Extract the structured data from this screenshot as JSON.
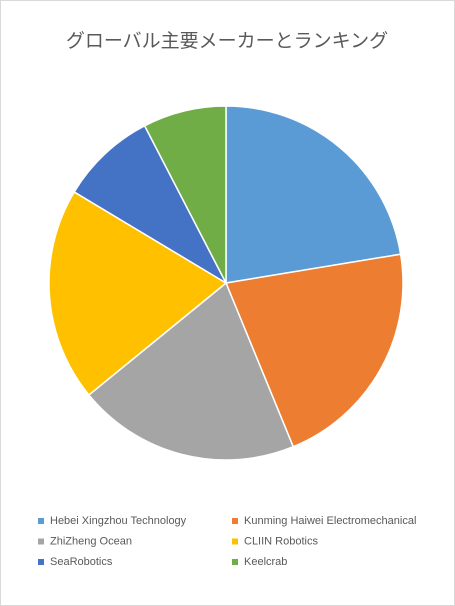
{
  "chart_data": {
    "type": "pie",
    "title": "グローバル主要メーカーとランキング",
    "categories": [
      "Hebei Xingzhou Technology",
      "Kunming Haiwei Electromechanical",
      "ZhiZheng Ocean",
      "CLIIN Robotics",
      "SeaRobotics",
      "Keelcrab"
    ],
    "values": [
      22.4,
      21.4,
      20.3,
      19.5,
      8.8,
      7.6
    ],
    "colors": [
      "#5b9bd5",
      "#ed7d31",
      "#a5a5a5",
      "#ffc000",
      "#4472c4",
      "#70ad47"
    ],
    "legend": "bottom"
  }
}
